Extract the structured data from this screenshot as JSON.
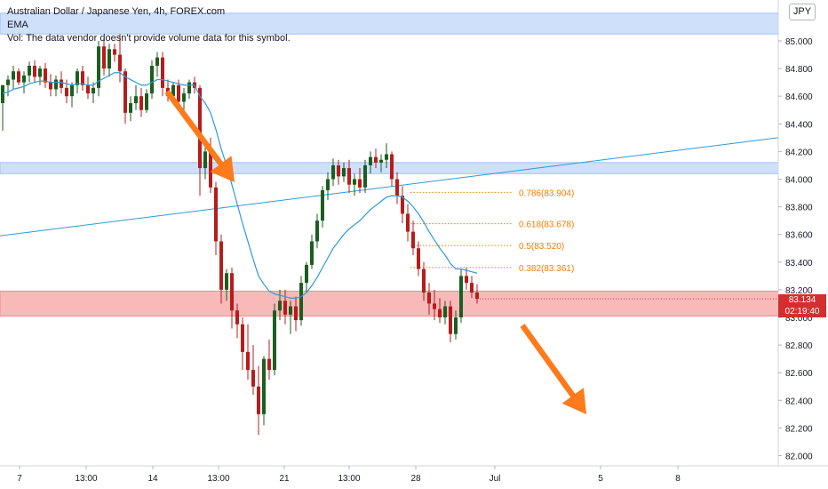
{
  "legend": {
    "title": "Australian Dollar / Japanese Yen, 4h, FOREX.com",
    "ema": "EMA",
    "vol": "Vol: The data vendor doesn't provide volume data for this symbol."
  },
  "currency_badge": "JPY",
  "last_price": {
    "value": "83.134",
    "countdown": "02:19:40"
  },
  "colors": {
    "up": "#26a69a",
    "down": "#ef5350",
    "candle_dark": "#1b5e20",
    "candle_red": "#b71c1c",
    "ema": "#2e9bd6",
    "trendline": "#2e9bd6",
    "zone_blue": "#cfe0fb",
    "zone_red": "#f8b9b9",
    "fib": "#f57c00",
    "arrow": "#ff7a1a",
    "price_tag": "#d32f2f"
  },
  "chart_data": {
    "type": "candlestick",
    "y_ticks": [
      "85.000",
      "84.800",
      "84.600",
      "84.400",
      "84.200",
      "84.000",
      "83.800",
      "83.600",
      "83.400",
      "83.200",
      "83.000",
      "82.800",
      "82.600",
      "82.400",
      "82.200",
      "82.000"
    ],
    "ylim": [
      81.95,
      85.2
    ],
    "x_ticks": [
      "7",
      "13:00",
      "14",
      "13:00",
      "21",
      "13:00",
      "28",
      "Jul",
      "5",
      "8"
    ],
    "zones": [
      {
        "name": "blue-zone-top",
        "from": 85.05,
        "to": 85.2
      },
      {
        "name": "blue-zone-mid",
        "from": 84.04,
        "to": 84.12
      },
      {
        "name": "red-zone",
        "from": 83.01,
        "to": 83.19
      }
    ],
    "fibonacci": [
      {
        "label": "0.786(83.904)",
        "level": 83.904
      },
      {
        "label": "0.618(83.678)",
        "level": 83.678
      },
      {
        "label": "0.5(83.520)",
        "level": 83.52
      },
      {
        "label": "0.382(83.361)",
        "level": 83.361
      }
    ],
    "trendline": {
      "start": 83.59,
      "end": 84.3
    },
    "candles": [
      [
        84.55,
        84.68,
        84.35,
        84.68
      ],
      [
        84.68,
        84.75,
        84.6,
        84.72
      ],
      [
        84.72,
        84.82,
        84.65,
        84.78
      ],
      [
        84.78,
        84.8,
        84.68,
        84.7
      ],
      [
        84.7,
        84.78,
        84.62,
        84.75
      ],
      [
        84.75,
        84.85,
        84.7,
        84.82
      ],
      [
        84.82,
        84.86,
        84.7,
        84.74
      ],
      [
        84.74,
        84.82,
        84.68,
        84.8
      ],
      [
        84.8,
        84.84,
        84.66,
        84.7
      ],
      [
        84.7,
        84.76,
        84.6,
        84.65
      ],
      [
        84.65,
        84.75,
        84.6,
        84.72
      ],
      [
        84.72,
        84.78,
        84.62,
        84.66
      ],
      [
        84.66,
        84.72,
        84.55,
        84.6
      ],
      [
        84.6,
        84.7,
        84.52,
        84.68
      ],
      [
        84.68,
        84.8,
        84.62,
        84.78
      ],
      [
        84.78,
        84.82,
        84.64,
        84.68
      ],
      [
        84.68,
        84.74,
        84.58,
        84.62
      ],
      [
        84.62,
        84.7,
        84.55,
        84.66
      ],
      [
        84.66,
        85.0,
        84.6,
        84.96
      ],
      [
        84.96,
        85.02,
        84.75,
        84.8
      ],
      [
        84.8,
        84.98,
        84.74,
        84.94
      ],
      [
        84.94,
        84.98,
        84.85,
        84.9
      ],
      [
        84.9,
        85.05,
        84.7,
        84.78
      ],
      [
        84.78,
        84.8,
        84.4,
        84.48
      ],
      [
        84.48,
        84.6,
        84.42,
        84.55
      ],
      [
        84.55,
        84.68,
        84.5,
        84.6
      ],
      [
        84.6,
        84.66,
        84.45,
        84.5
      ],
      [
        84.5,
        84.65,
        84.48,
        84.62
      ],
      [
        84.62,
        84.86,
        84.58,
        84.82
      ],
      [
        84.82,
        84.92,
        84.74,
        84.88
      ],
      [
        84.88,
        84.92,
        84.6,
        84.66
      ],
      [
        84.66,
        84.72,
        84.56,
        84.6
      ],
      [
        84.6,
        84.7,
        84.55,
        84.68
      ],
      [
        84.68,
        84.72,
        84.5,
        84.56
      ],
      [
        84.56,
        84.66,
        84.5,
        84.62
      ],
      [
        84.62,
        84.72,
        84.58,
        84.7
      ],
      [
        84.7,
        84.74,
        84.62,
        84.66
      ],
      [
        84.66,
        84.68,
        83.88,
        84.08
      ],
      [
        84.08,
        84.25,
        84.0,
        84.2
      ],
      [
        84.2,
        84.3,
        83.9,
        83.94
      ],
      [
        83.94,
        83.98,
        83.45,
        83.55
      ],
      [
        83.55,
        83.6,
        83.1,
        83.2
      ],
      [
        83.2,
        83.35,
        83.12,
        83.32
      ],
      [
        83.32,
        83.36,
        82.92,
        83.05
      ],
      [
        83.05,
        83.1,
        82.85,
        82.95
      ],
      [
        82.95,
        83.0,
        82.62,
        82.75
      ],
      [
        82.75,
        82.95,
        82.55,
        82.62
      ],
      [
        82.62,
        82.8,
        82.44,
        82.5
      ],
      [
        82.5,
        82.65,
        82.15,
        82.3
      ],
      [
        82.3,
        82.72,
        82.22,
        82.7
      ],
      [
        82.7,
        82.84,
        82.55,
        82.62
      ],
      [
        82.62,
        83.1,
        82.58,
        83.05
      ],
      [
        83.05,
        83.2,
        82.98,
        83.12
      ],
      [
        83.12,
        83.2,
        82.95,
        83.02
      ],
      [
        83.02,
        83.12,
        82.88,
        83.08
      ],
      [
        83.08,
        83.15,
        82.9,
        82.98
      ],
      [
        82.98,
        83.3,
        82.94,
        83.25
      ],
      [
        83.25,
        83.4,
        83.18,
        83.38
      ],
      [
        83.38,
        83.6,
        83.35,
        83.55
      ],
      [
        83.55,
        83.75,
        83.5,
        83.7
      ],
      [
        83.7,
        83.95,
        83.65,
        83.92
      ],
      [
        83.92,
        84.05,
        83.85,
        84.0
      ],
      [
        84.0,
        84.15,
        83.95,
        84.1
      ],
      [
        84.1,
        84.14,
        83.96,
        84.02
      ],
      [
        84.02,
        84.12,
        83.98,
        84.08
      ],
      [
        84.08,
        84.14,
        83.9,
        83.96
      ],
      [
        83.96,
        84.04,
        83.88,
        84.0
      ],
      [
        84.0,
        84.08,
        83.9,
        83.94
      ],
      [
        83.94,
        84.14,
        83.9,
        84.1
      ],
      [
        84.1,
        84.2,
        84.04,
        84.16
      ],
      [
        84.16,
        84.22,
        84.08,
        84.12
      ],
      [
        84.12,
        84.18,
        84.05,
        84.14
      ],
      [
        84.14,
        84.26,
        84.08,
        84.18
      ],
      [
        84.18,
        84.2,
        83.95,
        84.0
      ],
      [
        84.0,
        84.05,
        83.82,
        83.88
      ],
      [
        83.88,
        83.95,
        83.68,
        83.75
      ],
      [
        83.75,
        83.82,
        83.55,
        83.62
      ],
      [
        83.62,
        83.7,
        83.45,
        83.5
      ],
      [
        83.5,
        83.55,
        83.3,
        83.35
      ],
      [
        83.35,
        83.4,
        83.12,
        83.18
      ],
      [
        83.18,
        83.25,
        83.02,
        83.1
      ],
      [
        83.1,
        83.2,
        82.98,
        83.06
      ],
      [
        83.06,
        83.14,
        82.96,
        83.0
      ],
      [
        83.0,
        83.12,
        82.95,
        83.08
      ],
      [
        83.08,
        83.12,
        82.82,
        82.88
      ],
      [
        82.88,
        83.05,
        82.84,
        83.0
      ],
      [
        83.0,
        83.35,
        82.96,
        83.3
      ],
      [
        83.3,
        83.36,
        83.2,
        83.25
      ],
      [
        83.25,
        83.3,
        83.14,
        83.18
      ],
      [
        83.18,
        83.24,
        83.1,
        83.134
      ]
    ],
    "ema": [
      84.62,
      84.63,
      84.65,
      84.66,
      84.67,
      84.69,
      84.7,
      84.71,
      84.71,
      84.7,
      84.7,
      84.7,
      84.69,
      84.68,
      84.69,
      84.69,
      84.68,
      84.68,
      84.71,
      84.73,
      84.75,
      84.77,
      84.77,
      84.74,
      84.72,
      84.7,
      84.68,
      84.68,
      84.7,
      84.72,
      84.72,
      84.71,
      84.7,
      84.69,
      84.68,
      84.68,
      84.68,
      84.6,
      84.55,
      84.48,
      84.36,
      84.22,
      84.1,
      83.96,
      83.82,
      83.68,
      83.55,
      83.42,
      83.3,
      83.24,
      83.19,
      83.17,
      83.16,
      83.15,
      83.14,
      83.14,
      83.15,
      83.18,
      83.23,
      83.29,
      83.36,
      83.43,
      83.5,
      83.55,
      83.6,
      83.64,
      83.67,
      83.7,
      83.74,
      83.78,
      83.81,
      83.84,
      83.87,
      83.88,
      83.88,
      83.87,
      83.84,
      83.8,
      83.75,
      83.69,
      83.62,
      83.56,
      83.5,
      83.45,
      83.39,
      83.35,
      83.35,
      83.34,
      83.33,
      83.32
    ]
  }
}
